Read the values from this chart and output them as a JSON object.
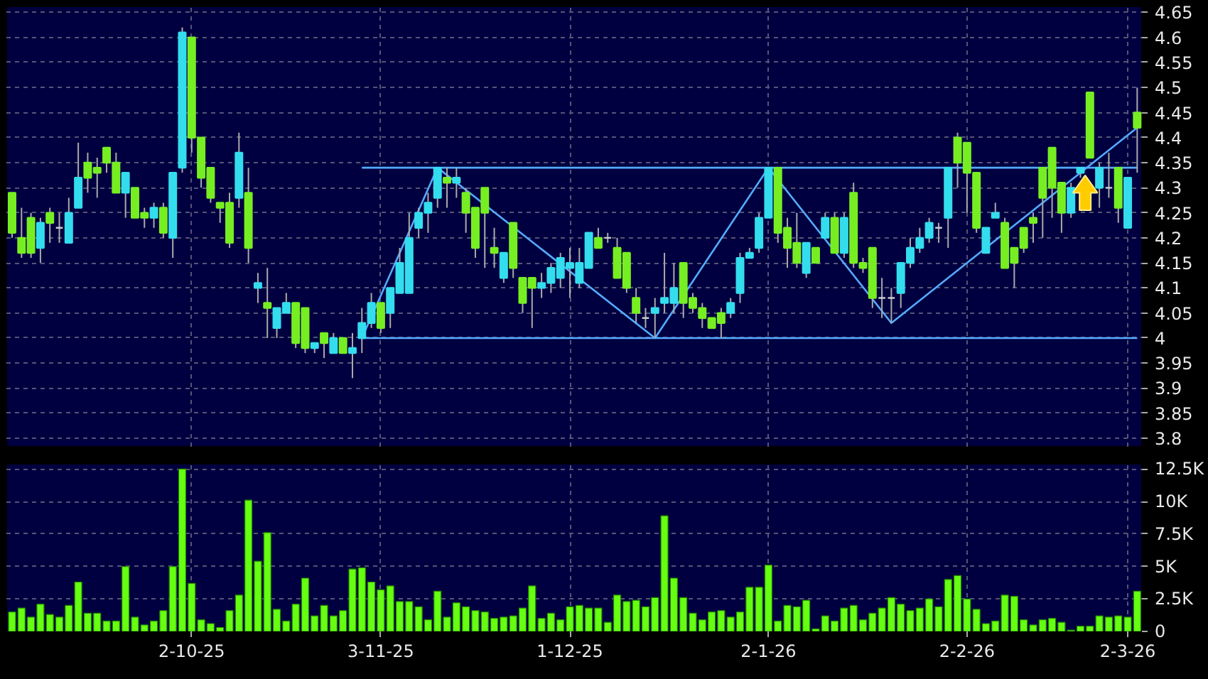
{
  "chart_data": [
    {
      "type": "candlestick",
      "grid": true,
      "tick_labels": "y",
      "ylim": [
        3.783,
        4.662
      ],
      "yticks": [
        3.8,
        3.85,
        3.9,
        3.95,
        4,
        4.05,
        4.1,
        4.15,
        4.2,
        4.25,
        4.3,
        4.35,
        4.4,
        4.45,
        4.5,
        4.55,
        4.6,
        4.65
      ],
      "categories": [
        null,
        null,
        null,
        null,
        null,
        null,
        null,
        null,
        null,
        null,
        null,
        null,
        null,
        null,
        null,
        null,
        null,
        null,
        null,
        null,
        null,
        null,
        null,
        null,
        null,
        null,
        null,
        null,
        null,
        null,
        null,
        null,
        null,
        null,
        null,
        null,
        null,
        null,
        null,
        null,
        null,
        null,
        null,
        null,
        null,
        null,
        null,
        null,
        null,
        null,
        null,
        null,
        null,
        null,
        null,
        null,
        null,
        null,
        null,
        null,
        null,
        null,
        null,
        null,
        null,
        null,
        null,
        null,
        null,
        null,
        null,
        null,
        null,
        null,
        null,
        null,
        null,
        null,
        null,
        null,
        null,
        null,
        null,
        null,
        null,
        null,
        null,
        null,
        null,
        null,
        null,
        null,
        null,
        null,
        null,
        null,
        null,
        null,
        null,
        null,
        null,
        null,
        null,
        null,
        null,
        null,
        null,
        null,
        null,
        null,
        null,
        null,
        null,
        null,
        null,
        null,
        null,
        null,
        null,
        null
      ],
      "ohlc": [
        [
          4.29,
          4.29,
          4.2,
          4.21
        ],
        [
          4.2,
          4.26,
          4.16,
          4.17
        ],
        [
          4.24,
          4.25,
          4.16,
          4.17
        ],
        [
          4.18,
          4.24,
          4.15,
          4.23
        ],
        [
          4.25,
          4.26,
          4.19,
          4.23
        ],
        [
          4.22,
          4.25,
          4.19,
          4.22
        ],
        [
          4.19,
          4.28,
          4.19,
          4.25
        ],
        [
          4.26,
          4.39,
          4.26,
          4.32
        ],
        [
          4.35,
          4.37,
          4.29,
          4.32
        ],
        [
          4.34,
          4.36,
          4.28,
          4.33
        ],
        [
          4.38,
          4.38,
          4.33,
          4.35
        ],
        [
          4.35,
          4.37,
          4.29,
          4.29
        ],
        [
          4.29,
          4.33,
          4.24,
          4.33
        ],
        [
          4.3,
          4.3,
          4.24,
          4.24
        ],
        [
          4.25,
          4.26,
          4.22,
          4.24
        ],
        [
          4.24,
          4.27,
          4.22,
          4.26
        ],
        [
          4.26,
          4.27,
          4.2,
          4.21
        ],
        [
          4.2,
          4.33,
          4.16,
          4.33
        ],
        [
          4.34,
          4.62,
          4.33,
          4.61
        ],
        [
          4.6,
          4.6,
          4.37,
          4.4
        ],
        [
          4.4,
          4.4,
          4.3,
          4.32
        ],
        [
          4.34,
          4.34,
          4.27,
          4.28
        ],
        [
          4.27,
          4.27,
          4.23,
          4.26
        ],
        [
          4.27,
          4.29,
          4.18,
          4.19
        ],
        [
          4.28,
          4.41,
          4.26,
          4.37
        ],
        [
          4.29,
          4.34,
          4.15,
          4.18
        ],
        [
          4.1,
          4.13,
          4.07,
          4.11
        ],
        [
          4.07,
          4.14,
          4.0,
          4.06
        ],
        [
          4.02,
          4.06,
          4.0,
          4.06
        ],
        [
          4.05,
          4.09,
          4.05,
          4.07
        ],
        [
          4.07,
          4.07,
          3.98,
          3.99
        ],
        [
          4.06,
          4.06,
          3.97,
          3.98
        ],
        [
          3.98,
          3.99,
          3.97,
          3.99
        ],
        [
          4.01,
          4.01,
          3.96,
          3.99
        ],
        [
          3.97,
          4.01,
          3.97,
          4.0
        ],
        [
          4.0,
          4.0,
          3.97,
          3.97
        ],
        [
          3.97,
          4.01,
          3.92,
          3.98
        ],
        [
          4.0,
          4.06,
          3.97,
          4.03
        ],
        [
          4.03,
          4.09,
          4.02,
          4.07
        ],
        [
          4.07,
          4.07,
          4.01,
          4.02
        ],
        [
          4.05,
          4.1,
          4.02,
          4.1
        ],
        [
          4.09,
          4.18,
          4.09,
          4.15
        ],
        [
          4.09,
          4.25,
          4.09,
          4.2
        ],
        [
          4.22,
          4.26,
          4.2,
          4.25
        ],
        [
          4.25,
          4.29,
          4.21,
          4.27
        ],
        [
          4.28,
          4.34,
          4.26,
          4.34
        ],
        [
          4.32,
          4.34,
          4.26,
          4.31
        ],
        [
          4.31,
          4.34,
          4.28,
          4.32
        ],
        [
          4.29,
          4.3,
          4.21,
          4.25
        ],
        [
          4.26,
          4.26,
          4.16,
          4.18
        ],
        [
          4.3,
          4.3,
          4.14,
          4.25
        ],
        [
          4.18,
          4.22,
          4.14,
          4.17
        ],
        [
          4.12,
          4.17,
          4.11,
          4.17
        ],
        [
          4.23,
          4.23,
          4.12,
          4.14
        ],
        [
          4.12,
          4.12,
          4.05,
          4.07
        ],
        [
          4.12,
          4.12,
          4.02,
          4.1
        ],
        [
          4.1,
          4.13,
          4.08,
          4.11
        ],
        [
          4.11,
          4.15,
          4.09,
          4.14
        ],
        [
          4.12,
          4.17,
          4.1,
          4.16
        ],
        [
          4.14,
          4.18,
          4.08,
          4.15
        ],
        [
          4.11,
          4.18,
          4.1,
          4.15
        ],
        [
          4.14,
          4.21,
          4.14,
          4.21
        ],
        [
          4.2,
          4.22,
          4.18,
          4.18
        ],
        [
          4.2,
          4.21,
          4.19,
          4.2
        ],
        [
          4.18,
          4.2,
          4.12,
          4.12
        ],
        [
          4.17,
          4.17,
          4.09,
          4.1
        ],
        [
          4.08,
          4.1,
          4.03,
          4.05
        ],
        [
          4.04,
          4.06,
          4.02,
          4.04
        ],
        [
          4.05,
          4.08,
          4.0,
          4.06
        ],
        [
          4.07,
          4.17,
          4.05,
          4.08
        ],
        [
          4.07,
          4.15,
          4.05,
          4.1
        ],
        [
          4.15,
          4.15,
          4.04,
          4.07
        ],
        [
          4.08,
          4.09,
          4.05,
          4.06
        ],
        [
          4.06,
          4.07,
          4.02,
          4.04
        ],
        [
          4.04,
          4.04,
          4.02,
          4.02
        ],
        [
          4.05,
          4.06,
          4.0,
          4.03
        ],
        [
          4.05,
          4.08,
          4.04,
          4.07
        ],
        [
          4.09,
          4.17,
          4.07,
          4.16
        ],
        [
          4.16,
          4.18,
          4.16,
          4.17
        ],
        [
          4.18,
          4.25,
          4.17,
          4.24
        ],
        [
          4.24,
          4.34,
          4.24,
          4.34
        ],
        [
          4.34,
          4.34,
          4.19,
          4.21
        ],
        [
          4.22,
          4.24,
          4.14,
          4.18
        ],
        [
          4.19,
          4.25,
          4.14,
          4.15
        ],
        [
          4.13,
          4.19,
          4.12,
          4.19
        ],
        [
          4.18,
          4.18,
          4.15,
          4.15
        ],
        [
          4.2,
          4.25,
          4.2,
          4.24
        ],
        [
          4.24,
          4.25,
          4.17,
          4.17
        ],
        [
          4.17,
          4.25,
          4.16,
          4.24
        ],
        [
          4.29,
          4.31,
          4.14,
          4.15
        ],
        [
          4.15,
          4.16,
          4.13,
          4.14
        ],
        [
          4.18,
          4.18,
          4.06,
          4.08
        ],
        [
          4.08,
          4.12,
          4.04,
          4.08
        ],
        [
          4.08,
          4.1,
          4.03,
          4.08
        ],
        [
          4.09,
          4.15,
          4.06,
          4.15
        ],
        [
          4.15,
          4.2,
          4.14,
          4.18
        ],
        [
          4.18,
          4.22,
          4.17,
          4.2
        ],
        [
          4.2,
          4.24,
          4.19,
          4.23
        ],
        [
          4.22,
          4.23,
          4.19,
          4.22
        ],
        [
          4.24,
          4.34,
          4.18,
          4.34
        ],
        [
          4.4,
          4.41,
          4.3,
          4.35
        ],
        [
          4.39,
          4.39,
          4.25,
          4.33
        ],
        [
          4.33,
          4.33,
          4.21,
          4.22
        ],
        [
          4.17,
          4.22,
          4.17,
          4.22
        ],
        [
          4.24,
          4.27,
          4.24,
          4.25
        ],
        [
          4.23,
          4.24,
          4.14,
          4.14
        ],
        [
          4.18,
          4.18,
          4.1,
          4.15
        ],
        [
          4.22,
          4.22,
          4.17,
          4.18
        ],
        [
          4.24,
          4.25,
          4.19,
          4.23
        ],
        [
          4.34,
          4.34,
          4.2,
          4.28
        ],
        [
          4.38,
          4.38,
          4.24,
          4.3
        ],
        [
          4.31,
          4.31,
          4.21,
          4.25
        ],
        [
          4.25,
          4.31,
          4.24,
          4.3
        ],
        [
          4.33,
          4.34,
          4.32,
          4.34
        ],
        [
          4.49,
          4.49,
          4.36,
          4.36
        ],
        [
          4.3,
          4.35,
          4.26,
          4.34
        ],
        [
          4.3,
          4.37,
          4.28,
          4.3
        ],
        [
          4.34,
          4.34,
          4.23,
          4.26
        ],
        [
          4.22,
          4.32,
          4.22,
          4.32
        ],
        [
          4.45,
          4.5,
          4.33,
          4.42
        ]
      ],
      "colors": [
        "#77ee22",
        "#77ee22",
        "#77ee22",
        "#33ddee",
        "#77ee22",
        "#cccccc",
        "#33ddee",
        "#33ddee",
        "#77ee22",
        "#77ee22",
        "#77ee22",
        "#77ee22",
        "#33ddee",
        "#77ee22",
        "#77ee22",
        "#33ddee",
        "#77ee22",
        "#33ddee",
        "#33ddee",
        "#77ee22",
        "#77ee22",
        "#77ee22",
        "#77ee22",
        "#77ee22",
        "#33ddee",
        "#77ee22",
        "#33ddee",
        "#77ee22",
        "#33ddee",
        "#33ddee",
        "#77ee22",
        "#77ee22",
        "#33ddee",
        "#77ee22",
        "#33ddee",
        "#77ee22",
        "#33ddee",
        "#33ddee",
        "#33ddee",
        "#77ee22",
        "#33ddee",
        "#33ddee",
        "#33ddee",
        "#33ddee",
        "#33ddee",
        "#33ddee",
        "#77ee22",
        "#33ddee",
        "#77ee22",
        "#77ee22",
        "#77ee22",
        "#77ee22",
        "#33ddee",
        "#77ee22",
        "#77ee22",
        "#77ee22",
        "#33ddee",
        "#33ddee",
        "#33ddee",
        "#33ddee",
        "#33ddee",
        "#33ddee",
        "#77ee22",
        "#cccccc",
        "#77ee22",
        "#77ee22",
        "#77ee22",
        "#cccccc",
        "#33ddee",
        "#33ddee",
        "#33ddee",
        "#77ee22",
        "#77ee22",
        "#77ee22",
        "#77ee22",
        "#77ee22",
        "#33ddee",
        "#33ddee",
        "#33ddee",
        "#33ddee",
        "#33ddee",
        "#77ee22",
        "#77ee22",
        "#77ee22",
        "#33ddee",
        "#77ee22",
        "#33ddee",
        "#77ee22",
        "#33ddee",
        "#77ee22",
        "#77ee22",
        "#77ee22",
        "#cccccc",
        "#cccccc",
        "#33ddee",
        "#33ddee",
        "#33ddee",
        "#33ddee",
        "#cccccc",
        "#33ddee",
        "#77ee22",
        "#77ee22",
        "#77ee22",
        "#33ddee",
        "#33ddee",
        "#77ee22",
        "#77ee22",
        "#77ee22",
        "#77ee22",
        "#77ee22",
        "#77ee22",
        "#77ee22",
        "#33ddee",
        "#33ddee",
        "#77ee22",
        "#33ddee",
        "#cccccc",
        "#77ee22",
        "#33ddee",
        "#77ee22"
      ],
      "series": [
        {
          "type": "line",
          "color": "#55aaff",
          "values": [
            null,
            null,
            null,
            null,
            null,
            null,
            null,
            null,
            null,
            null,
            null,
            null,
            null,
            null,
            null,
            null,
            null,
            null,
            null,
            null,
            null,
            null,
            null,
            null,
            null,
            null,
            null,
            null,
            null,
            null,
            null,
            null,
            null,
            null,
            null,
            null,
            null,
            4.34,
            null,
            null,
            null,
            null,
            null,
            null,
            null,
            null,
            null,
            null,
            null,
            null,
            null,
            null,
            null,
            null,
            null,
            null,
            null,
            null,
            null,
            null,
            null,
            null,
            null,
            null,
            null,
            null,
            null,
            null,
            null,
            null,
            null,
            null,
            null,
            null,
            null,
            null,
            null,
            null,
            null,
            null,
            null,
            null,
            null,
            null,
            null,
            null,
            null,
            null,
            null,
            null,
            null,
            null,
            null,
            null,
            null,
            null,
            null,
            null,
            null,
            null,
            null,
            null,
            null,
            null,
            null,
            null,
            null,
            null,
            null,
            null,
            null,
            null,
            null,
            null,
            null,
            null,
            null,
            null,
            null,
            4.34
          ]
        },
        {
          "type": "line",
          "color": "#55aaff",
          "values": [
            null,
            null,
            null,
            null,
            null,
            null,
            null,
            null,
            null,
            null,
            null,
            null,
            null,
            null,
            null,
            null,
            null,
            null,
            null,
            null,
            null,
            null,
            null,
            null,
            null,
            null,
            null,
            null,
            null,
            null,
            null,
            null,
            null,
            null,
            null,
            null,
            null,
            4,
            null,
            null,
            null,
            null,
            null,
            null,
            null,
            null,
            null,
            null,
            null,
            null,
            null,
            null,
            null,
            null,
            null,
            null,
            null,
            null,
            null,
            null,
            null,
            null,
            null,
            null,
            null,
            null,
            null,
            null,
            null,
            null,
            null,
            null,
            null,
            null,
            null,
            null,
            null,
            null,
            null,
            null,
            null,
            null,
            null,
            null,
            null,
            null,
            null,
            null,
            null,
            null,
            null,
            null,
            null,
            null,
            null,
            null,
            null,
            null,
            null,
            null,
            null,
            null,
            null,
            null,
            null,
            null,
            null,
            null,
            null,
            null,
            null,
            null,
            null,
            null,
            null,
            null,
            null,
            null,
            null,
            4
          ]
        },
        {
          "type": "line",
          "color": "#55aaff",
          "values": [
            null,
            null,
            null,
            null,
            null,
            null,
            null,
            null,
            null,
            null,
            null,
            null,
            null,
            null,
            null,
            null,
            null,
            null,
            null,
            null,
            null,
            null,
            null,
            null,
            null,
            null,
            null,
            null,
            null,
            null,
            null,
            null,
            null,
            null,
            null,
            null,
            null,
            4,
            null,
            null,
            null,
            null,
            null,
            null,
            null,
            4.34,
            null,
            null,
            null,
            null,
            null,
            null,
            null,
            null,
            null,
            null,
            null,
            null,
            null,
            null,
            null,
            null,
            null,
            null,
            null,
            null,
            null,
            null,
            4,
            null,
            null,
            null,
            null,
            null,
            null,
            null,
            null,
            null,
            null,
            null,
            4.34,
            null,
            null,
            null,
            null,
            null,
            null,
            null,
            null,
            null,
            null,
            null,
            null,
            4.03,
            null,
            null,
            null,
            null,
            null,
            null,
            null,
            null,
            null,
            null,
            null,
            null,
            null,
            null,
            null,
            null,
            null,
            null,
            null,
            null,
            null,
            null,
            null,
            null,
            null,
            4.42
          ]
        }
      ]
    },
    {
      "type": "bar",
      "color": "#66ff11",
      "grid": true,
      "ylim": [
        0,
        12900
      ],
      "yticks": [
        {
          "value": 0,
          "label": "0"
        },
        {
          "value": 2500,
          "label": "2.5K"
        },
        {
          "value": 5000,
          "label": "5K"
        },
        {
          "value": 7500,
          "label": "7.5K"
        },
        {
          "value": 10000,
          "label": "10K"
        },
        {
          "value": 12500,
          "label": "12.5K"
        }
      ],
      "categories": [
        null,
        null,
        null,
        null,
        null,
        null,
        null,
        null,
        null,
        null,
        null,
        null,
        null,
        null,
        null,
        null,
        null,
        null,
        null,
        "2-10-25",
        null,
        null,
        null,
        null,
        null,
        null,
        null,
        null,
        null,
        null,
        null,
        null,
        null,
        null,
        null,
        null,
        null,
        null,
        null,
        "3-11-25",
        null,
        null,
        null,
        null,
        null,
        null,
        null,
        null,
        null,
        null,
        null,
        null,
        null,
        null,
        null,
        null,
        null,
        null,
        null,
        "1-12-25",
        null,
        null,
        null,
        null,
        null,
        null,
        null,
        null,
        null,
        null,
        null,
        null,
        null,
        null,
        null,
        null,
        null,
        null,
        null,
        null,
        "2-1-26",
        null,
        null,
        null,
        null,
        null,
        null,
        null,
        null,
        null,
        null,
        null,
        null,
        null,
        null,
        null,
        null,
        null,
        null,
        null,
        null,
        "2-2-26",
        null,
        null,
        null,
        null,
        null,
        null,
        null,
        null,
        null,
        null,
        null,
        null,
        null,
        null,
        null,
        null,
        "2-3-26",
        null
      ],
      "values": [
        1500,
        1800,
        1100,
        2100,
        1300,
        1100,
        2000,
        3800,
        1400,
        1400,
        800,
        800,
        5000,
        1100,
        500,
        800,
        1600,
        5000,
        12500,
        3700,
        900,
        600,
        300,
        1600,
        2800,
        10100,
        5400,
        7600,
        1700,
        800,
        2100,
        4100,
        1200,
        2000,
        1200,
        1600,
        4800,
        4900,
        3800,
        3200,
        3500,
        2300,
        2300,
        1900,
        900,
        3100,
        1100,
        2200,
        1900,
        1600,
        1500,
        1000,
        1100,
        1200,
        1800,
        3500,
        1000,
        1400,
        900,
        1900,
        2000,
        1800,
        1800,
        700,
        2800,
        2300,
        2400,
        1900,
        2600,
        8900,
        4100,
        2600,
        1400,
        900,
        1500,
        1600,
        1100,
        1500,
        3400,
        3400,
        5100,
        800,
        2000,
        1900,
        2400,
        200,
        1200,
        800,
        1800,
        2000,
        900,
        1400,
        1800,
        2600,
        2100,
        1600,
        1800,
        2500,
        1900,
        4000,
        4300,
        2500,
        1700,
        600,
        800,
        2800,
        2700,
        900,
        500,
        900,
        1000,
        700,
        100,
        400,
        400,
        1200,
        1100,
        1200,
        1100,
        3100
      ]
    }
  ]
}
